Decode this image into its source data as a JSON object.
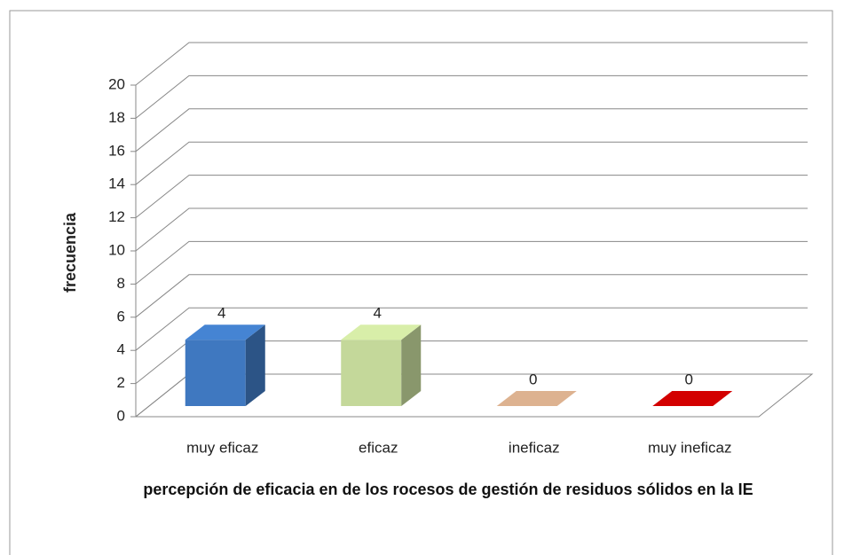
{
  "chart_data": {
    "type": "bar3d",
    "categories": [
      "muy eficaz",
      "eficaz",
      "ineficaz",
      "muy ineficaz"
    ],
    "values": [
      4,
      4,
      0,
      0
    ],
    "colors": [
      "#3f78c0",
      "#c4d89a",
      "#c9a283",
      "#c00000"
    ],
    "ylim": [
      0,
      20
    ],
    "yticks": [
      0,
      2,
      4,
      6,
      8,
      10,
      12,
      14,
      16,
      18,
      20
    ],
    "y_label": "frecuencia",
    "x_label": "percepción de eficacia en de los rocesos de gestión de residuos sólidos en la  IE",
    "grid": true
  }
}
